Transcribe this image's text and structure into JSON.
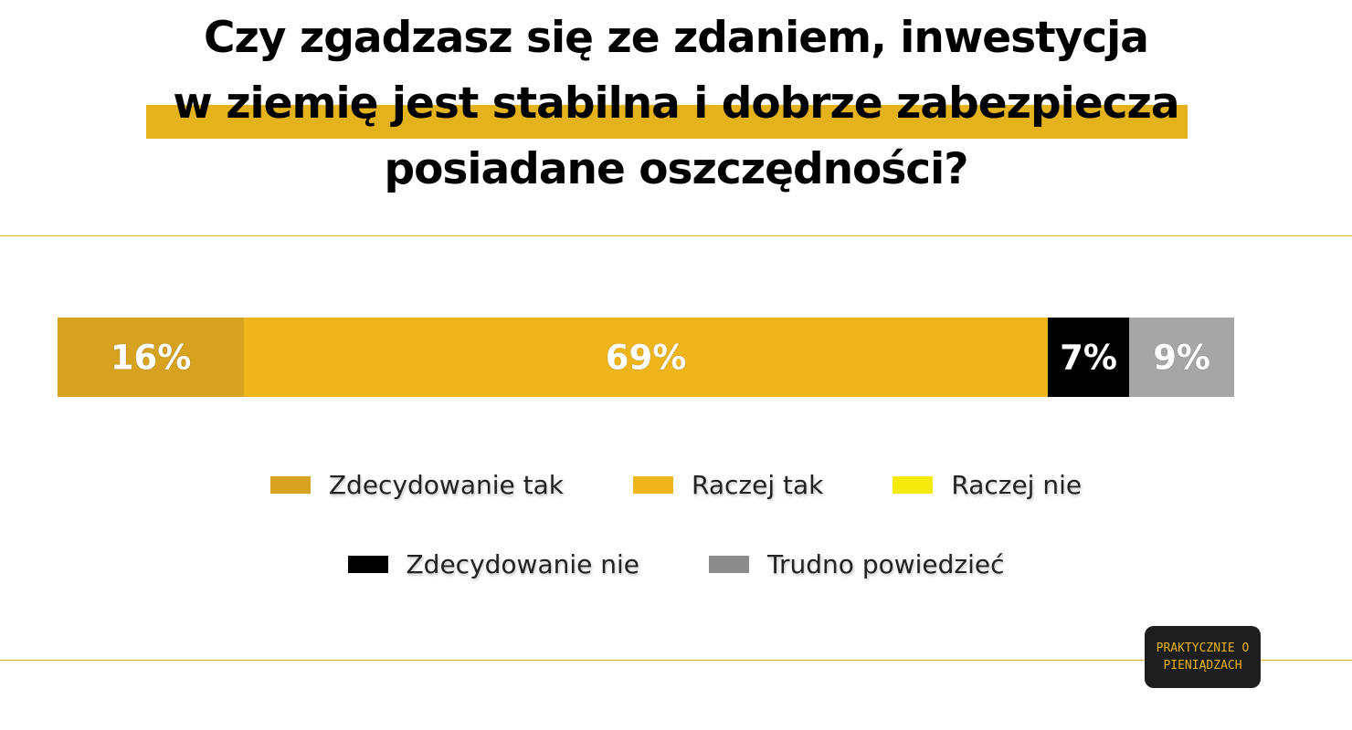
{
  "title": {
    "line1": "Czy zgadzasz się ze zdaniem, inwestycja",
    "line2": "w ziemię jest stabilna i dobrze zabezpiecza",
    "line3": "posiadane oszczędności?"
  },
  "logo": {
    "line1": "PRAKTYCZNIE O",
    "line2": "PIENIĄDZACH"
  },
  "colors": {
    "accent": "#e4b21a"
  },
  "chart_data": {
    "type": "bar",
    "orientation": "horizontal-stacked",
    "series": [
      {
        "name": "Zdecydowanie tak",
        "value": 16,
        "label": "16%",
        "color": "#d6a21f"
      },
      {
        "name": "Raczej tak",
        "value": 69,
        "label": "69%",
        "color": "#eeb61b"
      },
      {
        "name": "Raczej nie",
        "value": 0,
        "label": "",
        "color": "#f6ea0a"
      },
      {
        "name": "Zdecydowanie nie",
        "value": 7,
        "label": "7%",
        "color": "#000000"
      },
      {
        "name": "Trudno powiedzieć",
        "value": 9,
        "label": "9%",
        "color": "#a6a6a6"
      }
    ],
    "legend": [
      {
        "label": "Zdecydowanie tak",
        "color": "#d6a21f"
      },
      {
        "label": "Raczej tak",
        "color": "#eeb61b"
      },
      {
        "label": "Raczej nie",
        "color": "#f6ea0a"
      },
      {
        "label": "Zdecydowanie nie",
        "color": "#000000"
      },
      {
        "label": "Trudno powiedzieć",
        "color": "#8c8c8c"
      }
    ],
    "legend_position": "bottom",
    "grid": false
  }
}
